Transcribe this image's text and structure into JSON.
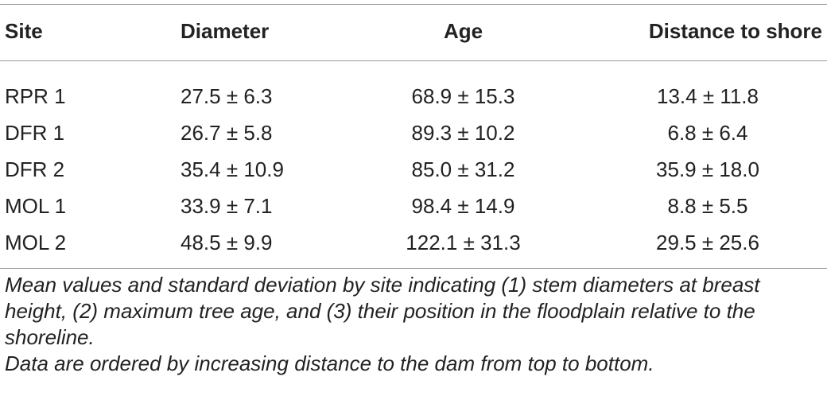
{
  "table": {
    "headers": [
      "Site",
      "Diameter",
      "Age",
      "Distance to shore"
    ],
    "rows": [
      [
        "RPR 1",
        "27.5 ± 6.3",
        "68.9 ± 15.3",
        "13.4 ± 11.8"
      ],
      [
        "DFR 1",
        "26.7 ± 5.8",
        "89.3 ± 10.2",
        "6.8 ± 6.4"
      ],
      [
        "DFR 2",
        "35.4 ± 10.9",
        "85.0 ± 31.2",
        "35.9 ± 18.0"
      ],
      [
        "MOL 1",
        "33.9 ± 7.1",
        "98.4 ± 14.9",
        "8.8 ± 5.5"
      ],
      [
        "MOL 2",
        "48.5 ± 9.9",
        "122.1 ± 31.3",
        "29.5 ± 25.6"
      ]
    ]
  },
  "caption": {
    "line1": "Mean values and standard deviation by site indicating (1) stem diameters at breast height, (2) maximum tree age, and (3) their position in the floodplain relative to the shoreline.",
    "line2": "Data are ordered by increasing distance to the dam from top to bottom."
  }
}
